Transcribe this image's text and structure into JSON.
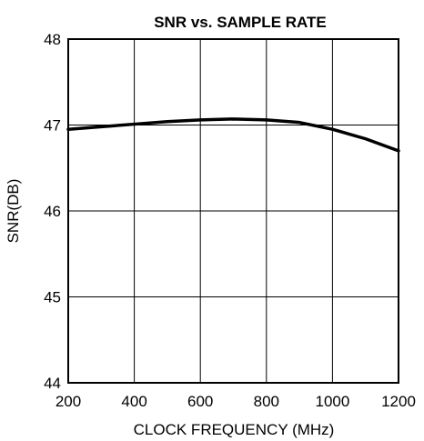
{
  "chart_data": {
    "type": "line",
    "title": "SNR vs. SAMPLE RATE",
    "xlabel": "CLOCK FREQUENCY (MHz)",
    "ylabel": "SNR(DB)",
    "xlim": [
      200,
      1200
    ],
    "ylim": [
      44,
      48
    ],
    "xticks": [
      200,
      400,
      600,
      800,
      1000,
      1200
    ],
    "yticks": [
      44,
      45,
      46,
      47,
      48
    ],
    "xtick_labels": [
      "200",
      "400",
      "600",
      "800",
      "1000",
      "1200"
    ],
    "ytick_labels": [
      "44",
      "45",
      "46",
      "47",
      "48"
    ],
    "grid": true,
    "series": [
      {
        "x": [
          200,
          300,
          400,
          500,
          600,
          700,
          800,
          900,
          1000,
          1100,
          1200
        ],
        "y": [
          46.95,
          46.98,
          47.01,
          47.04,
          47.06,
          47.07,
          47.06,
          47.03,
          46.95,
          46.84,
          46.7
        ]
      }
    ],
    "colors": {
      "line": "#000000",
      "grid": "#000000",
      "background": "#ffffff"
    }
  }
}
